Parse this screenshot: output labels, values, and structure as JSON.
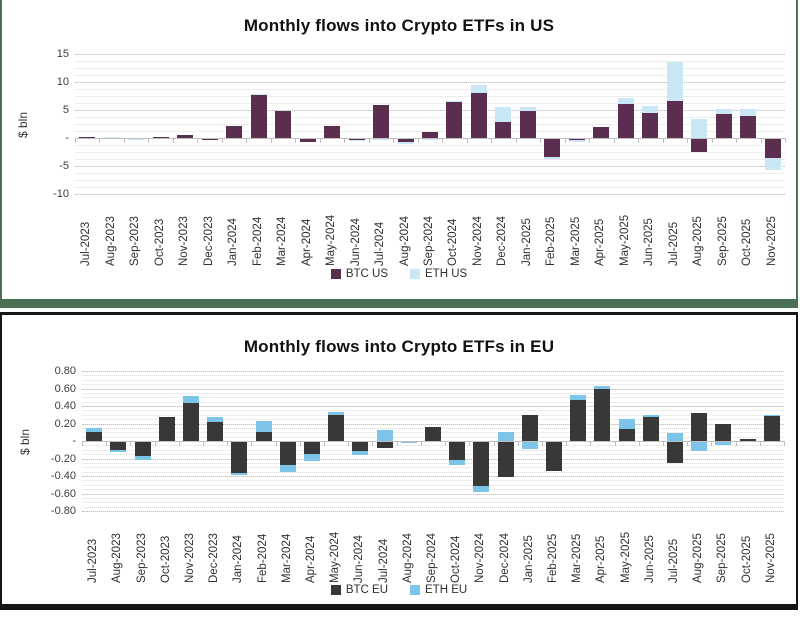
{
  "page": {
    "background": "#ffffff"
  },
  "panels": [
    {
      "id": "us",
      "border_color": "#4a7153"
    },
    {
      "id": "eu",
      "border_color": "#161616"
    }
  ],
  "chart_data": [
    {
      "type": "bar",
      "stacked": true,
      "title": "Monthly flows into Crypto ETFs in US",
      "ylabel": "$ bln",
      "xlabel": "",
      "ylim": [
        -10,
        15
      ],
      "ytick_values": [
        15,
        10,
        5,
        0,
        -5,
        -10
      ],
      "ytick_labels": [
        "15",
        "10",
        "5",
        "-",
        "-5",
        "-10"
      ],
      "minor_step": 1.25,
      "grid": "on",
      "legend_position": "bottom",
      "categories": [
        "Jul-2023",
        "Aug-2023",
        "Sep-2023",
        "Oct-2023",
        "Nov-2023",
        "Dec-2023",
        "Jan-2024",
        "Feb-2024",
        "Mar-2024",
        "Apr-2024",
        "May-2024",
        "Jun-2024",
        "Jul-2024",
        "Aug-2024",
        "Sep-2024",
        "Oct-2024",
        "Nov-2024",
        "Dec-2024",
        "Jan-2025",
        "Feb-2025",
        "Mar-2025",
        "Apr-2025",
        "May-2025",
        "Jun-2025",
        "Jul-2025",
        "Aug-2025",
        "Sep-2025",
        "Oct-2025",
        "Nov-2025"
      ],
      "series": [
        {
          "name": "BTC US",
          "color": "#5b2d4e",
          "values": [
            0.2,
            0.0,
            -0.1,
            0.2,
            0.5,
            -0.3,
            2.2,
            7.7,
            4.9,
            -0.7,
            2.2,
            -0.3,
            5.9,
            -0.7,
            1.1,
            6.5,
            8.0,
            2.8,
            4.9,
            -3.4,
            -0.3,
            2.0,
            6.0,
            4.5,
            6.6,
            -2.5,
            4.2,
            3.9,
            -3.6
          ]
        },
        {
          "name": "ETH US",
          "color": "#c9e7f5",
          "values": [
            -0.2,
            0.2,
            -0.2,
            0.0,
            0.0,
            0.0,
            0.0,
            0.2,
            -0.2,
            0.0,
            0.0,
            -0.1,
            -0.3,
            -0.3,
            -0.3,
            0.1,
            1.5,
            2.7,
            0.6,
            -0.4,
            -0.4,
            -0.2,
            1.1,
            1.3,
            7.0,
            3.4,
            1.0,
            1.3,
            -2.2
          ]
        }
      ]
    },
    {
      "type": "bar",
      "stacked": true,
      "title": "Monthly flows into Crypto ETFs in EU",
      "ylabel": "$ bln",
      "xlabel": "",
      "ylim": [
        -0.8,
        0.8
      ],
      "ytick_values": [
        0.8,
        0.6,
        0.4,
        0.2,
        0,
        -0.2,
        -0.4,
        -0.6,
        -0.8
      ],
      "ytick_labels": [
        "0.80",
        "0.60",
        "0.40",
        "0.20",
        "-",
        "-0.20",
        "-0.40",
        "-0.60",
        "-0.80"
      ],
      "minor_step": 0.05,
      "grid": "on",
      "legend_position": "bottom",
      "categories": [
        "Jul-2023",
        "Aug-2023",
        "Sep-2023",
        "Oct-2023",
        "Nov-2023",
        "Dec-2023",
        "Jan-2024",
        "Feb-2024",
        "Mar-2024",
        "Apr-2024",
        "May-2024",
        "Jun-2024",
        "Jul-2024",
        "Aug-2024",
        "Sep-2024",
        "Oct-2024",
        "Nov-2024",
        "Dec-2024",
        "Jan-2025",
        "Feb-2025",
        "Mar-2025",
        "Apr-2025",
        "May-2025",
        "Jun-2025",
        "Jul-2025",
        "Aug-2025",
        "Sep-2025",
        "Oct-2025",
        "Nov-2025"
      ],
      "series": [
        {
          "name": "BTC EU",
          "color": "#383838",
          "values": [
            0.1,
            -0.1,
            -0.17,
            0.28,
            0.43,
            0.22,
            -0.36,
            0.1,
            -0.27,
            -0.15,
            0.3,
            -0.11,
            -0.08,
            0.0,
            0.16,
            -0.22,
            -0.51,
            -0.41,
            0.3,
            -0.34,
            0.47,
            0.6,
            0.14,
            0.28,
            -0.25,
            0.32,
            0.19,
            0.02,
            0.29
          ]
        },
        {
          "name": "ETH EU",
          "color": "#7cc4e8",
          "values": [
            0.05,
            -0.02,
            -0.05,
            0.0,
            0.08,
            0.06,
            -0.03,
            0.13,
            -0.08,
            -0.08,
            0.03,
            -0.05,
            0.13,
            -0.02,
            0.0,
            -0.05,
            -0.07,
            0.1,
            -0.09,
            0.0,
            0.06,
            0.03,
            0.11,
            0.02,
            0.09,
            -0.11,
            -0.04,
            0.0,
            0.01
          ]
        }
      ]
    }
  ]
}
